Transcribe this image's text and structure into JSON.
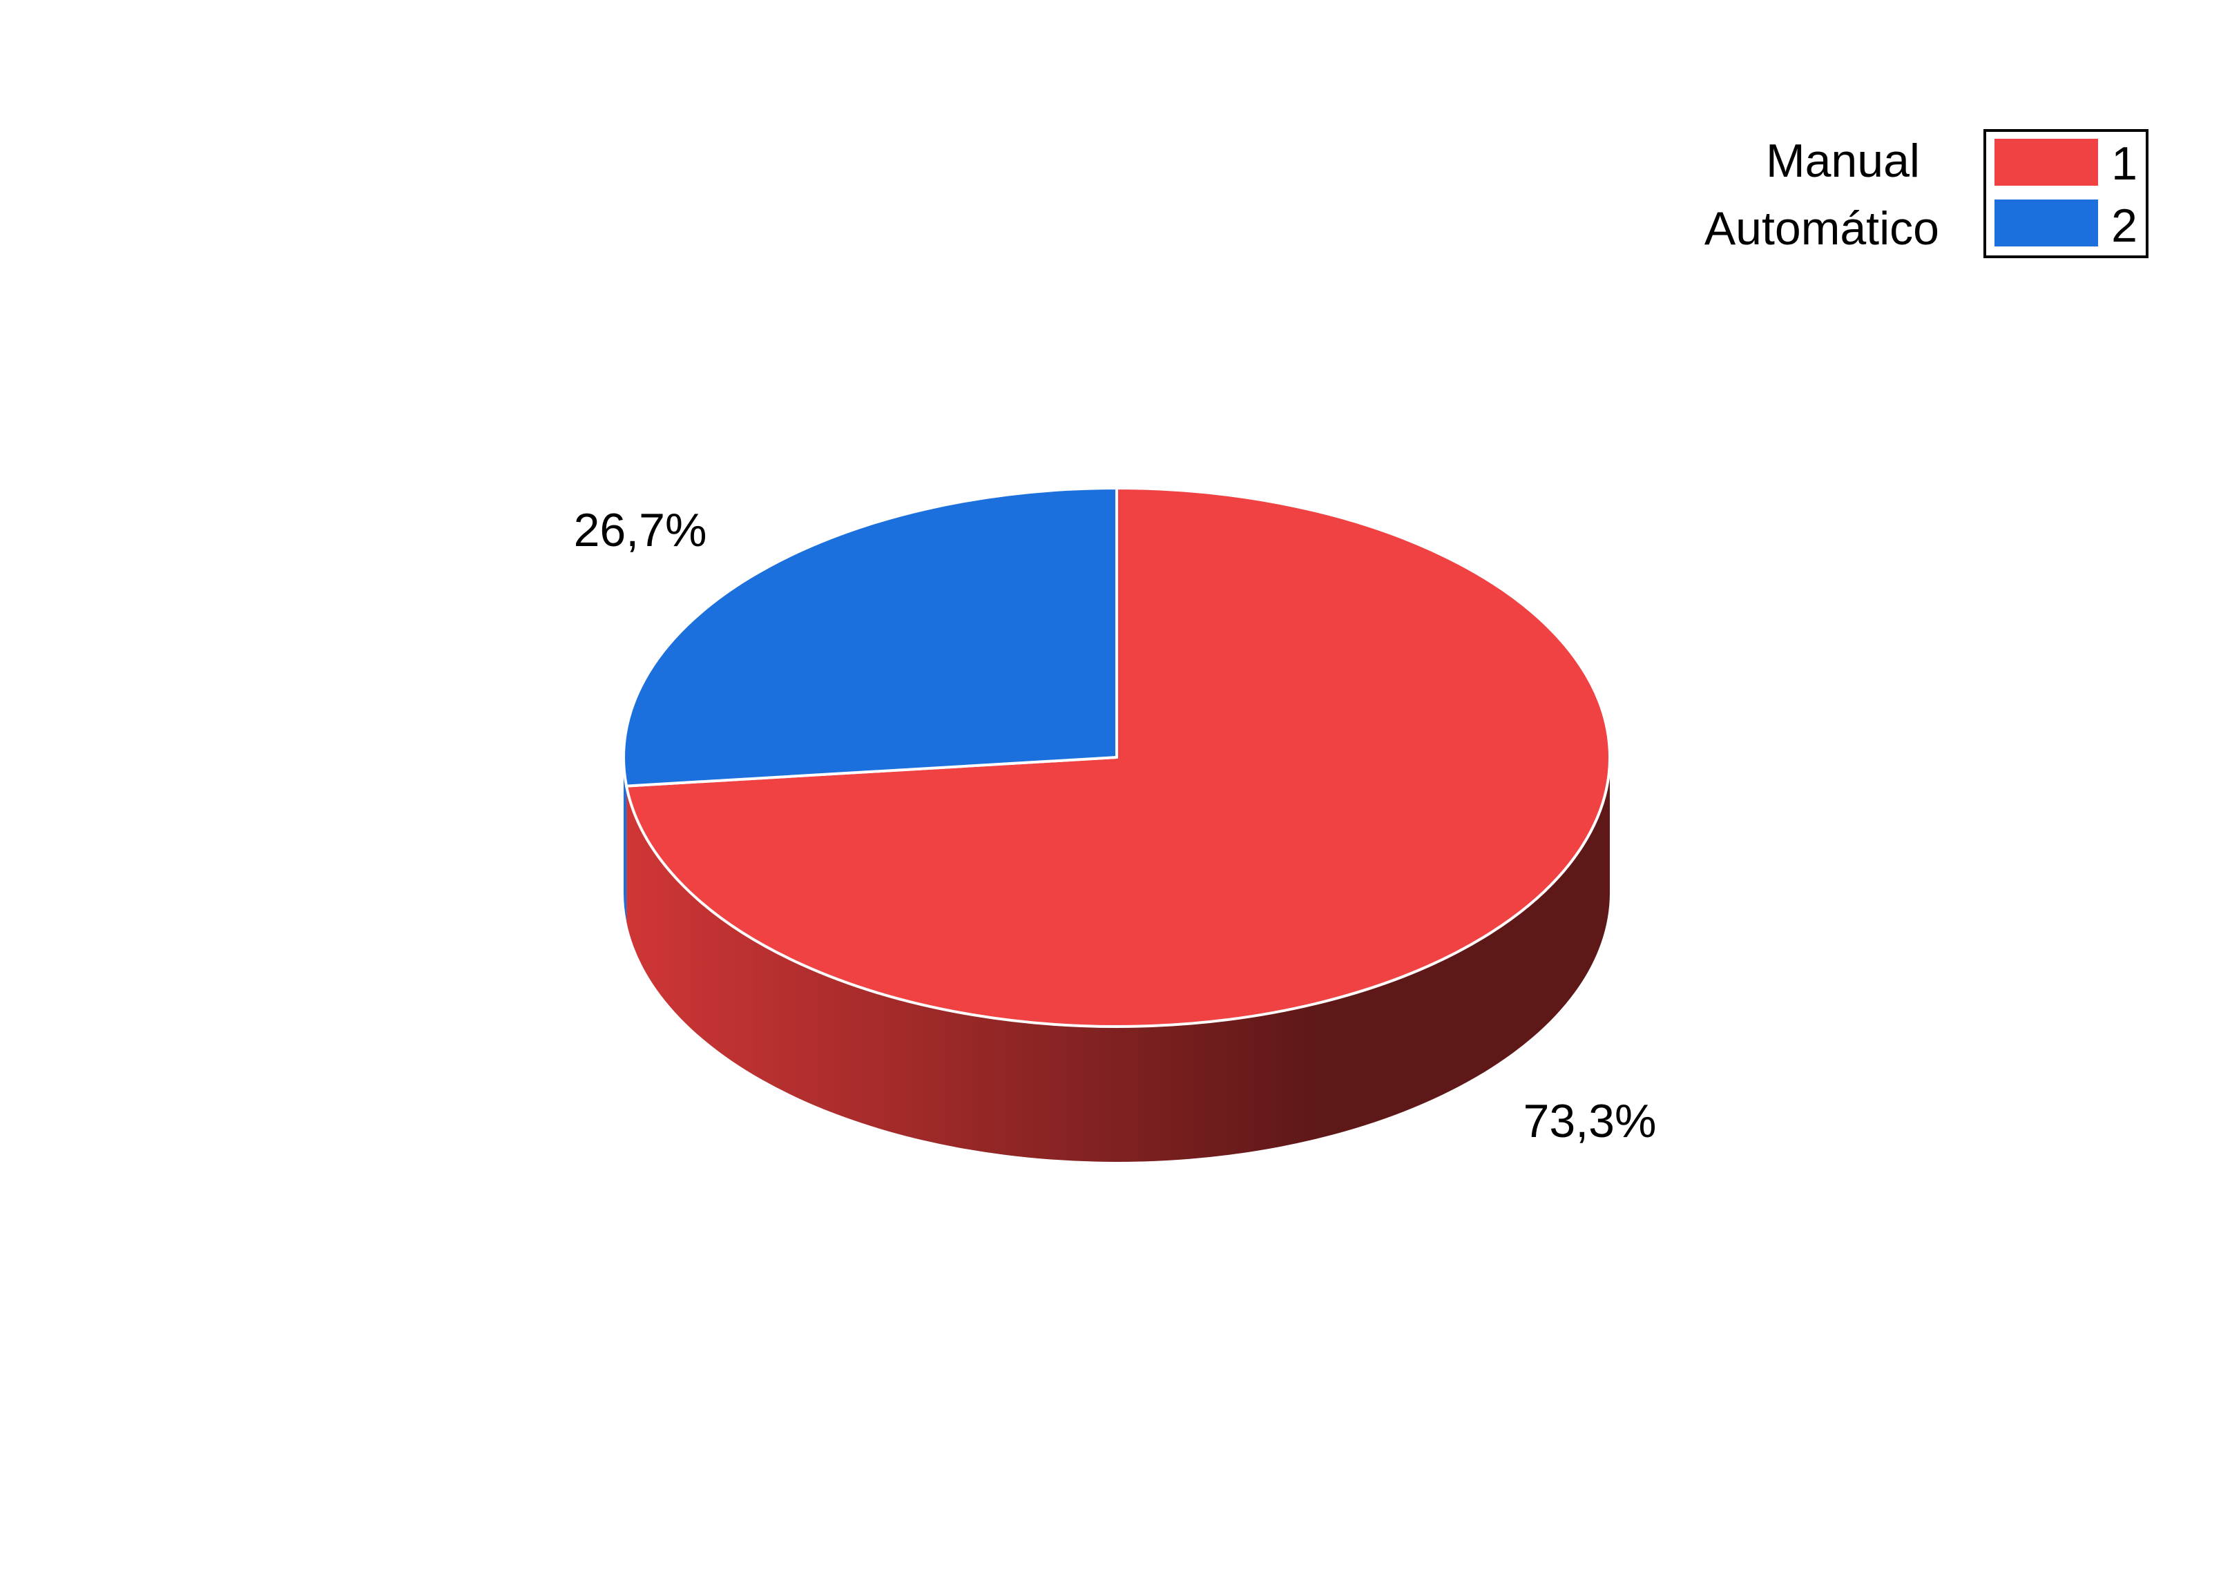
{
  "chart_data": {
    "type": "pie",
    "style": "3d",
    "categories": [
      "Manual",
      "Automático"
    ],
    "codes": [
      "1",
      "2"
    ],
    "values": [
      73.3,
      26.7
    ],
    "labels": [
      "73,3%",
      "26,7%"
    ],
    "colors": [
      "#f04242",
      "#1b70de"
    ],
    "side_color_dark": "#5f1818",
    "legend": {
      "placement": "top-right",
      "entries": [
        {
          "name": "Manual",
          "code": "1",
          "color": "#f04242"
        },
        {
          "name": "Automático",
          "code": "2",
          "color": "#1b70de"
        }
      ]
    }
  }
}
